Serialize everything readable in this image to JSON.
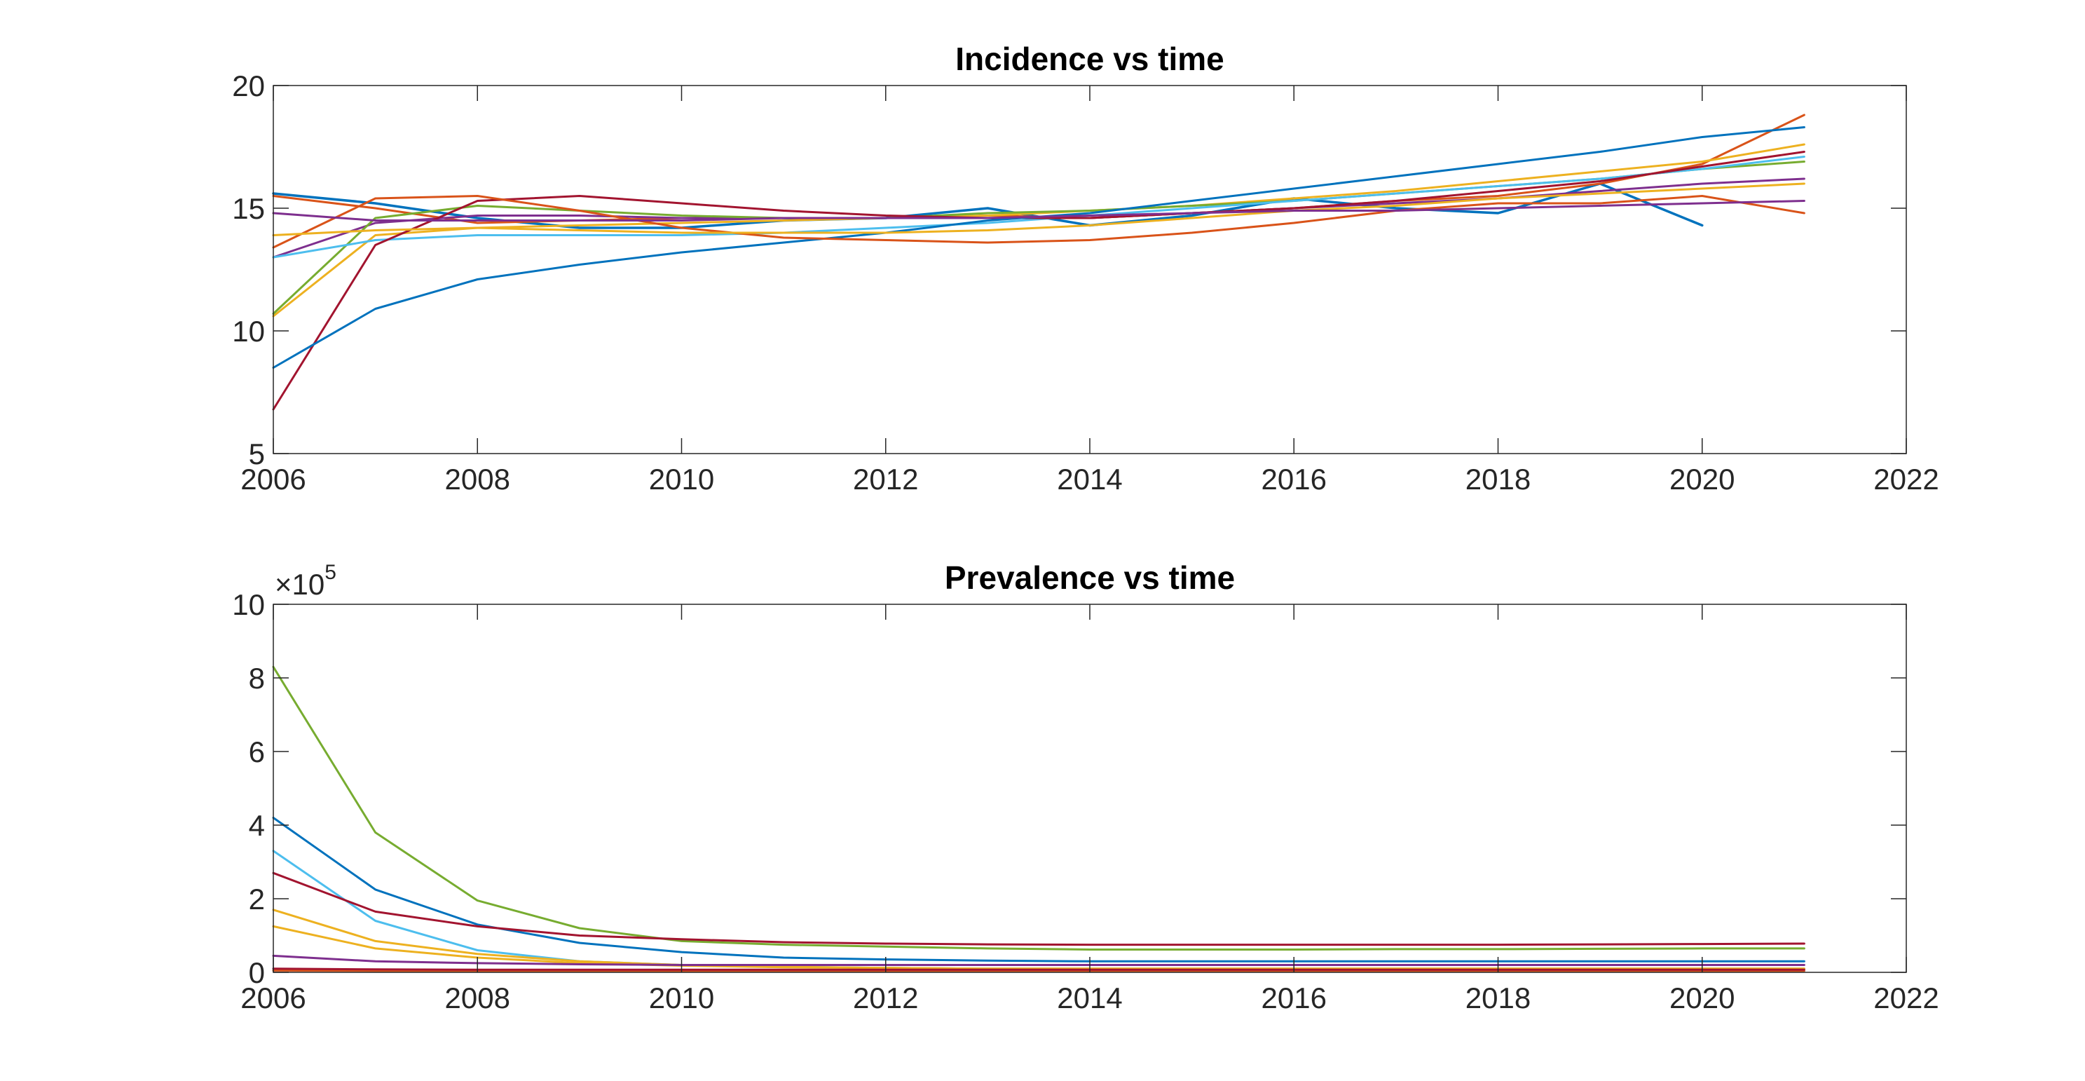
{
  "chart_data": [
    {
      "type": "line",
      "title": "Incidence vs time",
      "xlabel": "",
      "ylabel": "",
      "xlim": [
        2006,
        2022
      ],
      "ylim": [
        5,
        20
      ],
      "xticks": [
        "2006",
        "2008",
        "2010",
        "2012",
        "2014",
        "2016",
        "2018",
        "2020",
        "2022"
      ],
      "yticks": [
        "5",
        "10",
        "15",
        "20"
      ],
      "grid": false,
      "legend": "none",
      "series": [
        {
          "color": "#0072BD",
          "width": 3.5,
          "x": [
            2006,
            2007,
            2008,
            2009,
            2010,
            2011,
            2012,
            2013,
            2014,
            2015,
            2016,
            2017,
            2018,
            2019,
            2020
          ],
          "values": [
            15.6,
            15.2,
            14.6,
            14.2,
            14.2,
            14.5,
            14.6,
            15.0,
            14.3,
            14.7,
            15.4,
            15.0,
            14.8,
            16.0,
            14.3
          ]
        },
        {
          "color": "#D95319",
          "width": 3,
          "x": [
            2006,
            2007,
            2008,
            2009,
            2010,
            2011,
            2012,
            2013,
            2014,
            2015,
            2016,
            2017,
            2018,
            2019,
            2020,
            2021
          ],
          "values": [
            15.5,
            15.0,
            14.4,
            14.5,
            14.6,
            14.6,
            14.6,
            14.7,
            14.6,
            14.8,
            15.0,
            15.3,
            15.5,
            16.0,
            16.8,
            18.8
          ]
        },
        {
          "color": "#EDB120",
          "width": 3,
          "x": [
            2006,
            2007,
            2008,
            2009,
            2010,
            2011,
            2012,
            2013,
            2014,
            2015,
            2016,
            2017,
            2018,
            2019,
            2020,
            2021
          ],
          "values": [
            10.6,
            13.9,
            14.2,
            14.3,
            14.4,
            14.5,
            14.6,
            14.7,
            14.9,
            15.1,
            15.4,
            15.7,
            16.1,
            16.5,
            16.9,
            17.6
          ]
        },
        {
          "color": "#7E2F8E",
          "width": 3,
          "x": [
            2006,
            2007,
            2008,
            2009,
            2010,
            2011,
            2012,
            2013,
            2014,
            2015,
            2016,
            2017,
            2018,
            2019,
            2020,
            2021
          ],
          "values": [
            13.0,
            14.4,
            14.7,
            14.7,
            14.6,
            14.6,
            14.6,
            14.6,
            14.6,
            14.8,
            15.0,
            15.2,
            15.4,
            15.7,
            16.0,
            16.2
          ]
        },
        {
          "color": "#77AC30",
          "width": 3,
          "x": [
            2006,
            2007,
            2008,
            2009,
            2010,
            2011,
            2012,
            2013,
            2014,
            2015,
            2016,
            2017,
            2018,
            2019,
            2020,
            2021
          ],
          "values": [
            10.7,
            14.6,
            15.1,
            14.9,
            14.7,
            14.6,
            14.6,
            14.8,
            14.9,
            15.1,
            15.3,
            15.6,
            15.9,
            16.2,
            16.6,
            16.9
          ]
        },
        {
          "color": "#4DBEEE",
          "width": 3,
          "x": [
            2006,
            2007,
            2008,
            2009,
            2010,
            2011,
            2012,
            2013,
            2014,
            2015,
            2016,
            2017,
            2018,
            2019,
            2020,
            2021
          ],
          "values": [
            13.0,
            13.7,
            13.9,
            13.9,
            13.9,
            14.0,
            14.2,
            14.4,
            14.7,
            15.0,
            15.3,
            15.6,
            15.9,
            16.2,
            16.6,
            17.1
          ]
        },
        {
          "color": "#A2142F",
          "width": 3,
          "x": [
            2006,
            2007,
            2008,
            2009,
            2010,
            2011,
            2012,
            2013,
            2014,
            2015,
            2016,
            2017,
            2018,
            2019,
            2020,
            2021
          ],
          "values": [
            6.8,
            13.5,
            15.3,
            15.5,
            15.2,
            14.9,
            14.7,
            14.6,
            14.6,
            14.8,
            15.0,
            15.3,
            15.7,
            16.1,
            16.7,
            17.3
          ]
        },
        {
          "color": "#0072BD",
          "width": 3,
          "x": [
            2006,
            2007,
            2008,
            2009,
            2010,
            2011,
            2012,
            2013,
            2014,
            2015,
            2016,
            2017,
            2018,
            2019,
            2020,
            2021
          ],
          "values": [
            8.5,
            10.9,
            12.1,
            12.7,
            13.2,
            13.6,
            14.0,
            14.5,
            14.8,
            15.3,
            15.8,
            16.3,
            16.8,
            17.3,
            17.9,
            18.3
          ]
        },
        {
          "color": "#D95319",
          "width": 3,
          "x": [
            2006,
            2007,
            2008,
            2009,
            2010,
            2011,
            2012,
            2013,
            2014,
            2015,
            2016,
            2017,
            2018,
            2019,
            2020,
            2021
          ],
          "values": [
            13.4,
            15.4,
            15.5,
            14.9,
            14.2,
            13.8,
            13.7,
            13.6,
            13.7,
            14.0,
            14.4,
            14.9,
            15.2,
            15.2,
            15.5,
            14.8
          ]
        },
        {
          "color": "#EDB120",
          "width": 3,
          "x": [
            2006,
            2007,
            2008,
            2009,
            2010,
            2011,
            2012,
            2013,
            2014,
            2015,
            2016,
            2017,
            2018,
            2019,
            2020,
            2021
          ],
          "values": [
            13.9,
            14.1,
            14.2,
            14.1,
            14.0,
            14.0,
            14.0,
            14.1,
            14.3,
            14.6,
            14.9,
            15.1,
            15.4,
            15.6,
            15.8,
            16.0
          ]
        },
        {
          "color": "#7E2F8E",
          "width": 3,
          "x": [
            2006,
            2007,
            2008,
            2009,
            2010,
            2011,
            2012,
            2013,
            2014,
            2015,
            2016,
            2017,
            2018,
            2019,
            2020,
            2021
          ],
          "values": [
            14.8,
            14.5,
            14.5,
            14.5,
            14.5,
            14.6,
            14.6,
            14.6,
            14.7,
            14.8,
            14.9,
            14.9,
            15.0,
            15.1,
            15.2,
            15.3
          ]
        }
      ]
    },
    {
      "type": "line",
      "title": "Prevalence vs time",
      "xlabel": "",
      "ylabel": "",
      "xlim": [
        2006,
        2022
      ],
      "ylim": [
        0,
        10
      ],
      "xticks": [
        "2006",
        "2008",
        "2010",
        "2012",
        "2014",
        "2016",
        "2018",
        "2020",
        "2022"
      ],
      "yticks": [
        "0",
        "2",
        "4",
        "6",
        "8",
        "10"
      ],
      "exponent_base": "×10",
      "exponent": "5",
      "grid": false,
      "legend": "none",
      "series": [
        {
          "color": "#77AC30",
          "width": 3,
          "x": [
            2006,
            2007,
            2008,
            2009,
            2010,
            2011,
            2012,
            2013,
            2014,
            2015,
            2016,
            2017,
            2018,
            2019,
            2020,
            2021
          ],
          "values": [
            8.3,
            3.8,
            1.95,
            1.2,
            0.85,
            0.75,
            0.7,
            0.65,
            0.62,
            0.62,
            0.62,
            0.63,
            0.63,
            0.64,
            0.65,
            0.65
          ]
        },
        {
          "color": "#0072BD",
          "width": 3,
          "x": [
            2006,
            2007,
            2008,
            2009,
            2010,
            2011,
            2012,
            2013,
            2014,
            2015,
            2016,
            2017,
            2018,
            2019,
            2020,
            2021
          ],
          "values": [
            4.2,
            2.25,
            1.3,
            0.8,
            0.55,
            0.4,
            0.35,
            0.32,
            0.3,
            0.3,
            0.3,
            0.3,
            0.3,
            0.3,
            0.3,
            0.3
          ]
        },
        {
          "color": "#4DBEEE",
          "width": 3,
          "x": [
            2006,
            2007,
            2008,
            2009,
            2010,
            2011,
            2012,
            2013,
            2014,
            2015,
            2016,
            2017,
            2018,
            2019,
            2020,
            2021
          ],
          "values": [
            3.3,
            1.4,
            0.6,
            0.3,
            0.2,
            0.15,
            0.12,
            0.1,
            0.1,
            0.1,
            0.1,
            0.1,
            0.1,
            0.1,
            0.1,
            0.1
          ]
        },
        {
          "color": "#A2142F",
          "width": 3,
          "x": [
            2006,
            2007,
            2008,
            2009,
            2010,
            2011,
            2012,
            2013,
            2014,
            2015,
            2016,
            2017,
            2018,
            2019,
            2020,
            2021
          ],
          "values": [
            2.7,
            1.65,
            1.25,
            1.0,
            0.9,
            0.82,
            0.78,
            0.76,
            0.75,
            0.75,
            0.75,
            0.75,
            0.75,
            0.76,
            0.77,
            0.78
          ]
        },
        {
          "color": "#EDB120",
          "width": 3,
          "x": [
            2006,
            2007,
            2008,
            2009,
            2010,
            2011,
            2012,
            2013,
            2014,
            2015,
            2016,
            2017,
            2018,
            2019,
            2020,
            2021
          ],
          "values": [
            1.7,
            0.85,
            0.5,
            0.3,
            0.2,
            0.15,
            0.12,
            0.1,
            0.1,
            0.1,
            0.1,
            0.1,
            0.1,
            0.1,
            0.1,
            0.1
          ]
        },
        {
          "color": "#EDB120",
          "width": 3,
          "x": [
            2006,
            2007,
            2008,
            2009,
            2010,
            2011,
            2012,
            2013,
            2014,
            2015,
            2016,
            2017,
            2018,
            2019,
            2020,
            2021
          ],
          "values": [
            1.25,
            0.65,
            0.4,
            0.25,
            0.18,
            0.14,
            0.12,
            0.1,
            0.1,
            0.1,
            0.1,
            0.1,
            0.1,
            0.1,
            0.1,
            0.1
          ]
        },
        {
          "color": "#7E2F8E",
          "width": 3,
          "x": [
            2006,
            2007,
            2008,
            2009,
            2010,
            2011,
            2012,
            2013,
            2014,
            2015,
            2016,
            2017,
            2018,
            2019,
            2020,
            2021
          ],
          "values": [
            0.45,
            0.3,
            0.25,
            0.22,
            0.2,
            0.2,
            0.2,
            0.2,
            0.2,
            0.2,
            0.2,
            0.2,
            0.2,
            0.2,
            0.2,
            0.2
          ]
        },
        {
          "color": "#D95319",
          "width": 3,
          "x": [
            2006,
            2007,
            2008,
            2009,
            2010,
            2011,
            2012,
            2013,
            2014,
            2015,
            2016,
            2017,
            2018,
            2019,
            2020,
            2021
          ],
          "values": [
            0.05,
            0.04,
            0.04,
            0.04,
            0.04,
            0.04,
            0.04,
            0.04,
            0.04,
            0.04,
            0.04,
            0.04,
            0.04,
            0.04,
            0.04,
            0.04
          ]
        },
        {
          "color": "#A2142F",
          "width": 3,
          "x": [
            2006,
            2007,
            2008,
            2009,
            2010,
            2011,
            2012,
            2013,
            2014,
            2015,
            2016,
            2017,
            2018,
            2019,
            2020,
            2021
          ],
          "values": [
            0.1,
            0.08,
            0.07,
            0.07,
            0.07,
            0.07,
            0.07,
            0.07,
            0.07,
            0.07,
            0.07,
            0.07,
            0.07,
            0.07,
            0.07,
            0.07
          ]
        }
      ]
    }
  ]
}
